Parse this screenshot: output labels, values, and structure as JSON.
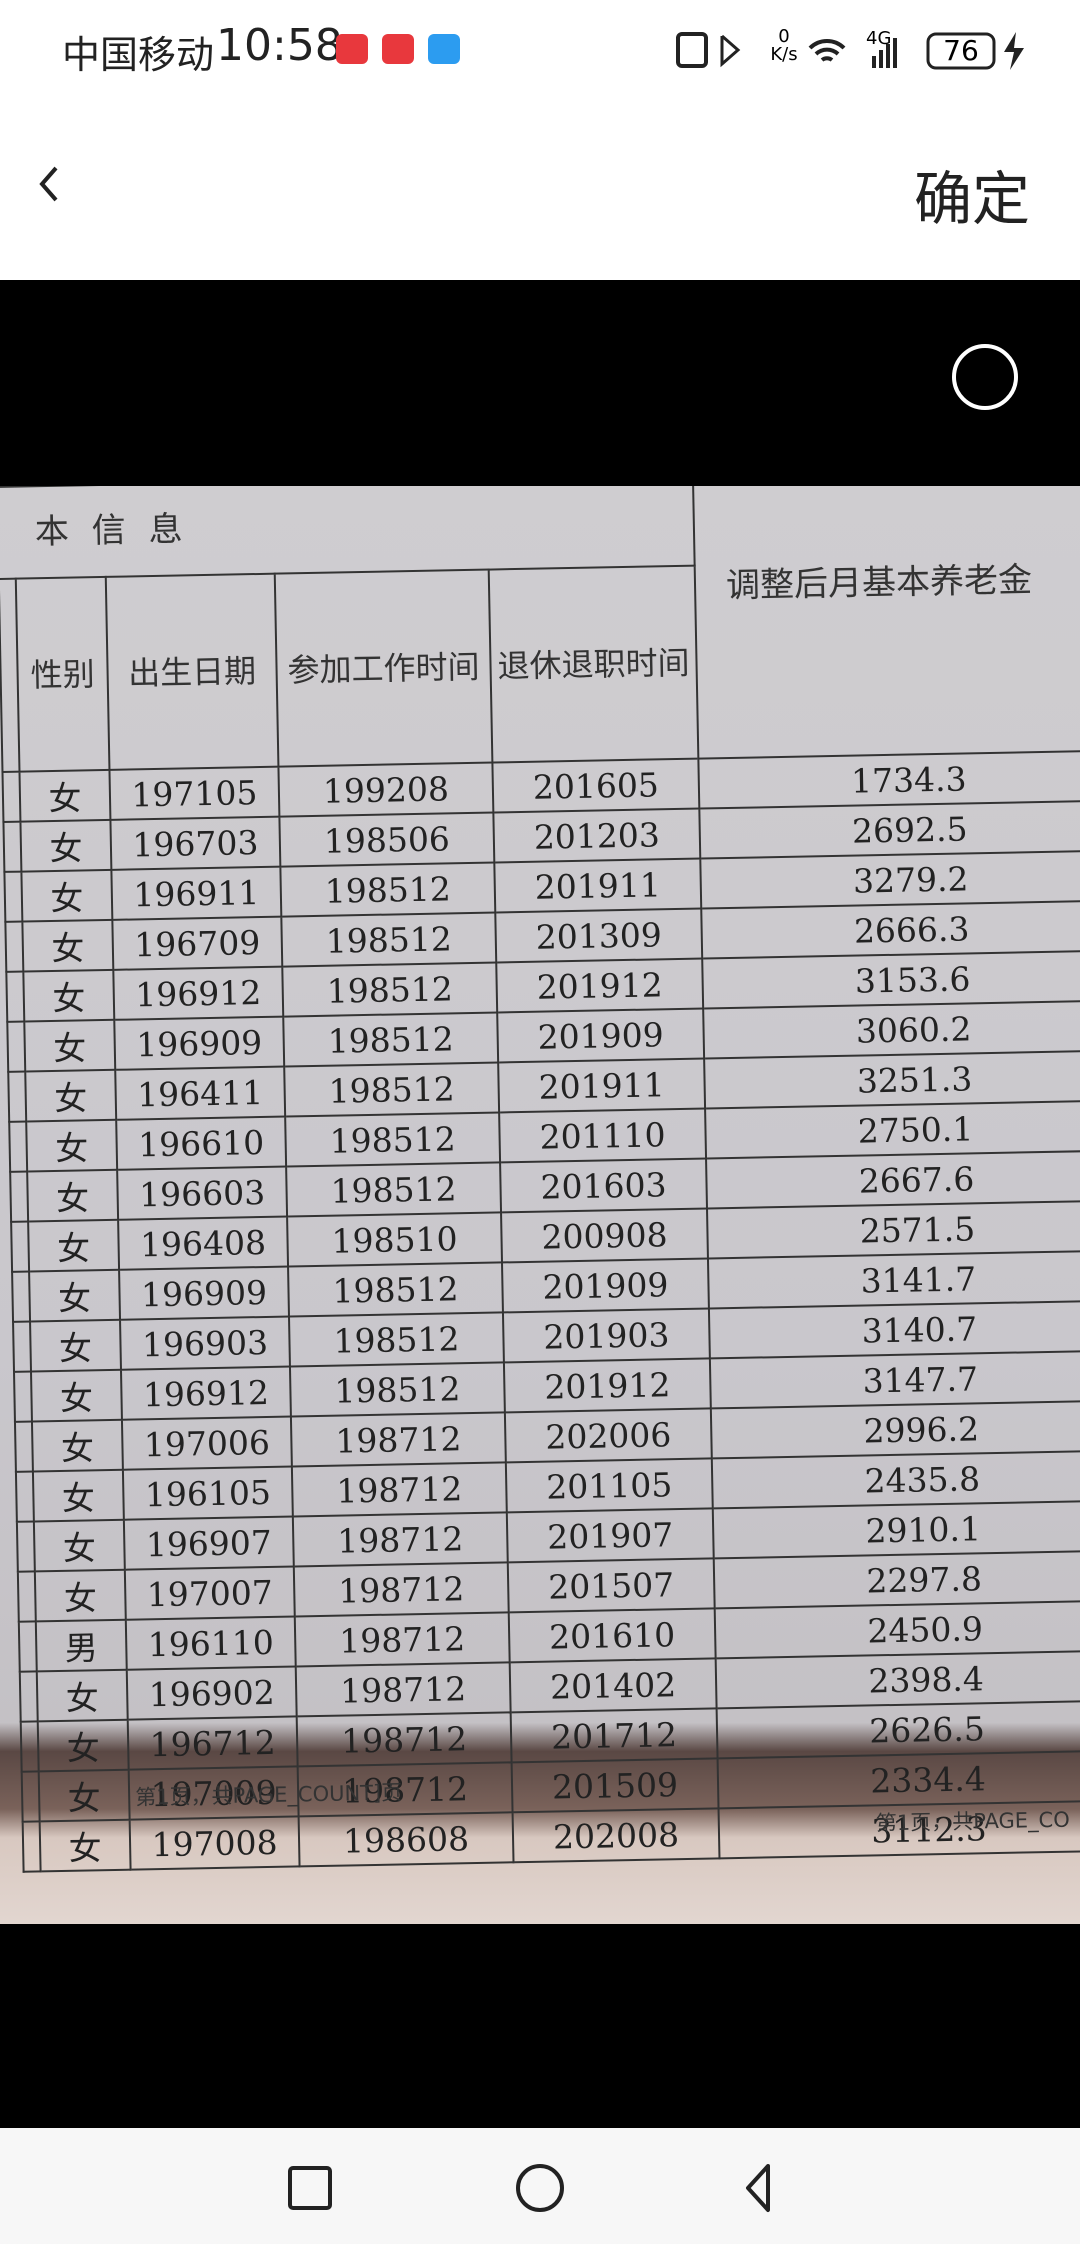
{
  "status_bar": {
    "carrier": "中国移动",
    "time": "10:58",
    "net_speed_value": "0",
    "net_speed_unit": "K/s",
    "network": "4G",
    "battery": "76"
  },
  "header": {
    "confirm": "确定"
  },
  "photo": {
    "table": {
      "section_title": "本 信 息",
      "columns": [
        "性别",
        "出生日期",
        "参加工作时间",
        "退休退职时间",
        "调整后月基本养老金"
      ],
      "rows": [
        [
          "女",
          "197105",
          "199208",
          "201605",
          "1734.3"
        ],
        [
          "女",
          "196703",
          "198506",
          "201203",
          "2692.5"
        ],
        [
          "女",
          "196911",
          "198512",
          "201911",
          "3279.2"
        ],
        [
          "女",
          "196709",
          "198512",
          "201309",
          "2666.3"
        ],
        [
          "女",
          "196912",
          "198512",
          "201912",
          "3153.6"
        ],
        [
          "女",
          "196909",
          "198512",
          "201909",
          "3060.2"
        ],
        [
          "女",
          "196411",
          "198512",
          "201911",
          "3251.3"
        ],
        [
          "女",
          "196610",
          "198512",
          "201110",
          "2750.1"
        ],
        [
          "女",
          "196603",
          "198512",
          "201603",
          "2667.6"
        ],
        [
          "女",
          "196408",
          "198510",
          "200908",
          "2571.5"
        ],
        [
          "女",
          "196909",
          "198512",
          "201909",
          "3141.7"
        ],
        [
          "女",
          "196903",
          "198512",
          "201903",
          "3140.7"
        ],
        [
          "女",
          "196912",
          "198512",
          "201912",
          "3147.7"
        ],
        [
          "女",
          "197006",
          "198712",
          "202006",
          "2996.2"
        ],
        [
          "女",
          "196105",
          "198712",
          "201105",
          "2435.8"
        ],
        [
          "女",
          "196907",
          "198712",
          "201907",
          "2910.1"
        ],
        [
          "女",
          "197007",
          "198712",
          "201507",
          "2297.8"
        ],
        [
          "男",
          "196110",
          "198712",
          "201610",
          "2450.9"
        ],
        [
          "女",
          "196902",
          "198712",
          "201402",
          "2398.4"
        ],
        [
          "女",
          "196712",
          "198712",
          "201712",
          "2626.5"
        ],
        [
          "女",
          "197009",
          "198712",
          "201509",
          "2334.4"
        ],
        [
          "女",
          "197008",
          "198608",
          "202008",
          "3112.3"
        ]
      ]
    },
    "footers": [
      "第1页，共PAGE_COUNT]页",
      "第1页，共PAGE_CO"
    ]
  }
}
